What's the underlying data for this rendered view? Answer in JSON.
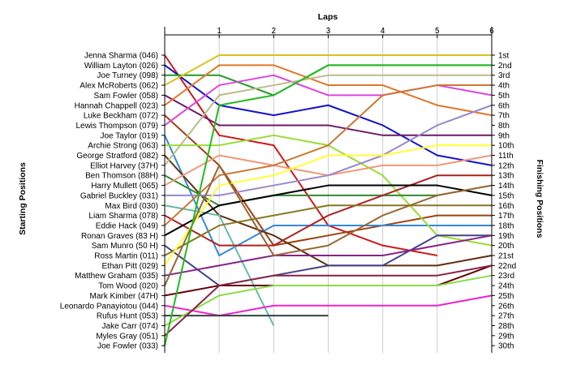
{
  "chart_data": {
    "type": "line",
    "title": "",
    "xlabel": "Laps",
    "ylabel_left": "Starting Positions",
    "ylabel_right": "Finishing Positions",
    "x_ticks": [
      "1",
      "2",
      "3",
      "4",
      "5",
      "6"
    ],
    "x_range": [
      0,
      6
    ],
    "y_range": [
      1,
      30
    ],
    "finishing_position_labels": [
      "1st",
      "2nd",
      "3rd",
      "4th",
      "5th",
      "6th",
      "7th",
      "8th",
      "9th",
      "10th",
      "11th",
      "12th",
      "13th",
      "14th",
      "15th",
      "16th",
      "17th",
      "18th",
      "19th",
      "20th",
      "21st",
      "22nd",
      "23rd",
      "24th",
      "25th",
      "26th",
      "27th",
      "28th",
      "29th",
      "30th"
    ],
    "grid": true,
    "series": [
      {
        "name": "Jenna Sharma (046)",
        "color": "#d01818",
        "positions": [
          1,
          9,
          10,
          18,
          20,
          21
        ]
      },
      {
        "name": "William Layton (026)",
        "color": "#1414c8",
        "positions": [
          2,
          6,
          7,
          6,
          8,
          11,
          12
        ]
      },
      {
        "name": "Joe Turney (098)",
        "color": "#229a22",
        "positions": [
          3,
          3,
          5,
          2,
          2,
          2,
          2
        ]
      },
      {
        "name": "Alex McRoberts (062)",
        "color": "#d4c41c",
        "positions": [
          4,
          1,
          1,
          1,
          1,
          1,
          1
        ]
      },
      {
        "name": "Sam Fowler (058)",
        "color": "#6a1a6a",
        "positions": [
          5,
          8,
          8,
          8,
          9,
          9,
          9
        ]
      },
      {
        "name": "Hannah Chappell (023)",
        "color": "#e07828",
        "positions": [
          6,
          2,
          2,
          4,
          4,
          6,
          7
        ]
      },
      {
        "name": "Luke Beckham (072)",
        "color": "#a04010",
        "positions": [
          7,
          12,
          20,
          19,
          18,
          17,
          17
        ]
      },
      {
        "name": "Lewis Thompson (079)",
        "color": "#dd44dd",
        "positions": [
          8,
          4,
          3,
          5,
          5,
          4,
          5
        ]
      },
      {
        "name": "Joe Taylor (019)",
        "color": "#3388dd",
        "positions": [
          9,
          21,
          18,
          18,
          18,
          18,
          18
        ]
      },
      {
        "name": "Archie Strong (063)",
        "color": "#99dd33",
        "positions": [
          10,
          10,
          9,
          10,
          13,
          19,
          20
        ]
      },
      {
        "name": "George Stratford (082)",
        "color": "#603010",
        "positions": [
          11,
          17,
          19,
          22,
          22,
          22,
          21
        ]
      },
      {
        "name": "Elliot Harvey (37H)",
        "color": "#bbbb88",
        "positions": [
          12,
          5,
          4,
          3,
          3,
          3,
          3
        ]
      },
      {
        "name": "Ben Thomson (88H)",
        "color": "#338833",
        "positions": [
          13,
          16,
          15,
          15,
          15,
          15,
          14
        ]
      },
      {
        "name": "Harry Mullett (065)",
        "color": "#ee9977",
        "positions": [
          14,
          11,
          12,
          13,
          12,
          12,
          11
        ]
      },
      {
        "name": "Gabriel Buckley (031)",
        "color": "#9988cc",
        "positions": [
          15,
          15,
          14,
          13,
          11,
          8,
          6
        ]
      },
      {
        "name": "Max Bird (030)",
        "color": "#66bbaa",
        "positions": [
          16,
          17,
          28
        ]
      },
      {
        "name": "Liam Sharma (078)",
        "color": "#aa2222",
        "positions": [
          17,
          20,
          20,
          17,
          15,
          13,
          13
        ]
      },
      {
        "name": "Eddie Hack (049)",
        "color": "#cc7733",
        "positions": [
          18,
          13,
          12,
          10,
          5,
          4,
          4
        ]
      },
      {
        "name": "Ronan Graves (83 H)",
        "color": "#000000",
        "positions": [
          19,
          16,
          15,
          14,
          14,
          14,
          15
        ]
      },
      {
        "name": "Sam Munro (50 H)",
        "color": "#444488",
        "positions": [
          20,
          24,
          23,
          22,
          22,
          19,
          19
        ]
      },
      {
        "name": "Ross Martin (011)",
        "color": "#887722",
        "positions": [
          21,
          18,
          17,
          16,
          16,
          16,
          16
        ]
      },
      {
        "name": "Ethan Pitt (029)",
        "color": "#ffff33",
        "positions": [
          22,
          14,
          13,
          11,
          11,
          10,
          10
        ]
      },
      {
        "name": "Matthew Graham (035)",
        "color": "#882288",
        "positions": [
          23,
          22,
          21,
          21,
          21,
          20,
          19
        ]
      },
      {
        "name": "Tom Wood (020)",
        "color": "#996633",
        "positions": [
          24,
          12,
          21,
          20,
          17,
          15,
          14
        ]
      },
      {
        "name": "Mark Kimber (47H)",
        "color": "#660000",
        "positions": [
          25,
          24,
          24,
          24,
          24,
          24,
          22
        ]
      },
      {
        "name": "Leonardo Panayiotou (044)",
        "color": "#ee22cc",
        "positions": [
          26,
          27,
          26,
          26,
          26,
          26,
          25
        ]
      },
      {
        "name": "Rufus Hunt (053)",
        "color": "#334444",
        "positions": [
          27,
          27,
          27,
          27
        ]
      },
      {
        "name": "Jake Carr (074)",
        "color": "#88dd44",
        "positions": [
          28,
          25,
          24,
          24,
          24,
          24,
          23
        ]
      },
      {
        "name": "Myles Gray (051)",
        "color": "#882244",
        "positions": [
          29,
          24,
          23,
          23,
          23,
          23,
          22
        ]
      },
      {
        "name": "Joe Fowler (033)",
        "color": "#22bb22",
        "positions": [
          30,
          6,
          5,
          2,
          2,
          2,
          2
        ]
      }
    ]
  }
}
